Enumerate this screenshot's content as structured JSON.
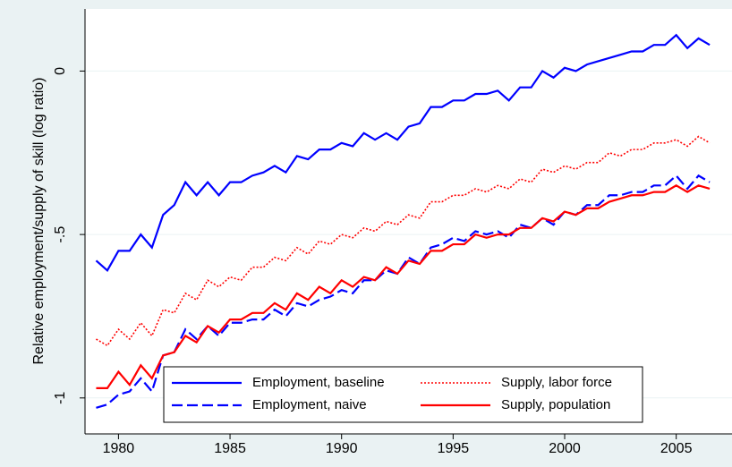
{
  "chart_data": {
    "type": "line",
    "ylabel": "Relative employment/supply of skill (log ratio)",
    "x": [
      1979,
      1979.5,
      1980,
      1980.5,
      1981,
      1981.5,
      1982,
      1982.5,
      1983,
      1983.5,
      1984,
      1984.5,
      1985,
      1985.5,
      1986,
      1986.5,
      1987,
      1987.5,
      1988,
      1988.5,
      1989,
      1989.5,
      1990,
      1990.5,
      1991,
      1991.5,
      1992,
      1992.5,
      1993,
      1993.5,
      1994,
      1994.5,
      1995,
      1995.5,
      1996,
      1996.5,
      1997,
      1997.5,
      1998,
      1998.5,
      1999,
      1999.5,
      2000,
      2000.5,
      2001,
      2001.5,
      2002,
      2002.5,
      2003,
      2003.5,
      2004,
      2004.5,
      2005,
      2005.5,
      2006,
      2006.5
    ],
    "series": [
      {
        "name": "Employment, baseline",
        "color": "#0000ff",
        "style": "solid",
        "values": [
          -0.58,
          -0.61,
          -0.55,
          -0.55,
          -0.5,
          -0.54,
          -0.44,
          -0.41,
          -0.34,
          -0.38,
          -0.34,
          -0.38,
          -0.34,
          -0.34,
          -0.32,
          -0.31,
          -0.29,
          -0.31,
          -0.26,
          -0.27,
          -0.24,
          -0.24,
          -0.22,
          -0.23,
          -0.19,
          -0.21,
          -0.19,
          -0.21,
          -0.17,
          -0.16,
          -0.11,
          -0.11,
          -0.09,
          -0.09,
          -0.07,
          -0.07,
          -0.06,
          -0.09,
          -0.05,
          -0.05,
          0.0,
          -0.02,
          0.01,
          0.0,
          0.02,
          0.03,
          0.04,
          0.05,
          0.06,
          0.06,
          0.08,
          0.08,
          0.11,
          0.07,
          0.1,
          0.08
        ]
      },
      {
        "name": "Supply, labor force",
        "color": "#ff0000",
        "style": "dot",
        "values": [
          -0.82,
          -0.84,
          -0.79,
          -0.82,
          -0.77,
          -0.81,
          -0.73,
          -0.74,
          -0.68,
          -0.7,
          -0.64,
          -0.66,
          -0.63,
          -0.64,
          -0.6,
          -0.6,
          -0.57,
          -0.58,
          -0.54,
          -0.56,
          -0.52,
          -0.53,
          -0.5,
          -0.51,
          -0.48,
          -0.49,
          -0.46,
          -0.47,
          -0.44,
          -0.45,
          -0.4,
          -0.4,
          -0.38,
          -0.38,
          -0.36,
          -0.37,
          -0.35,
          -0.36,
          -0.33,
          -0.34,
          -0.3,
          -0.31,
          -0.29,
          -0.3,
          -0.28,
          -0.28,
          -0.25,
          -0.26,
          -0.24,
          -0.24,
          -0.22,
          -0.22,
          -0.21,
          -0.23,
          -0.2,
          -0.22
        ]
      },
      {
        "name": "Employment, naive",
        "color": "#0000ff",
        "style": "dash",
        "values": [
          -1.03,
          -1.02,
          -0.99,
          -0.98,
          -0.94,
          -0.98,
          -0.87,
          -0.86,
          -0.79,
          -0.82,
          -0.78,
          -0.81,
          -0.77,
          -0.77,
          -0.76,
          -0.76,
          -0.73,
          -0.75,
          -0.71,
          -0.72,
          -0.7,
          -0.69,
          -0.67,
          -0.68,
          -0.64,
          -0.64,
          -0.61,
          -0.62,
          -0.57,
          -0.59,
          -0.54,
          -0.53,
          -0.51,
          -0.52,
          -0.49,
          -0.5,
          -0.49,
          -0.51,
          -0.47,
          -0.48,
          -0.45,
          -0.47,
          -0.43,
          -0.44,
          -0.41,
          -0.41,
          -0.38,
          -0.38,
          -0.37,
          -0.37,
          -0.35,
          -0.35,
          -0.32,
          -0.36,
          -0.32,
          -0.34
        ]
      },
      {
        "name": "Supply, population",
        "color": "#ff0000",
        "style": "solid",
        "values": [
          -0.97,
          -0.97,
          -0.92,
          -0.96,
          -0.9,
          -0.94,
          -0.87,
          -0.86,
          -0.81,
          -0.83,
          -0.78,
          -0.8,
          -0.76,
          -0.76,
          -0.74,
          -0.74,
          -0.71,
          -0.73,
          -0.68,
          -0.7,
          -0.66,
          -0.68,
          -0.64,
          -0.66,
          -0.63,
          -0.64,
          -0.6,
          -0.62,
          -0.58,
          -0.59,
          -0.55,
          -0.55,
          -0.53,
          -0.53,
          -0.5,
          -0.51,
          -0.5,
          -0.5,
          -0.48,
          -0.48,
          -0.45,
          -0.46,
          -0.43,
          -0.44,
          -0.42,
          -0.42,
          -0.4,
          -0.39,
          -0.38,
          -0.38,
          -0.37,
          -0.37,
          -0.35,
          -0.37,
          -0.35,
          -0.36
        ]
      }
    ],
    "xlim": [
      1978.5,
      2007.5
    ],
    "xticks": [
      1980,
      1985,
      1990,
      1995,
      2000,
      2005
    ],
    "ylim": [
      -1.11,
      0.19
    ],
    "yticks": [
      0,
      {
        "value": -0.5,
        "label": "-.5"
      },
      -1
    ],
    "grid": true,
    "legend_position": "bottom"
  }
}
